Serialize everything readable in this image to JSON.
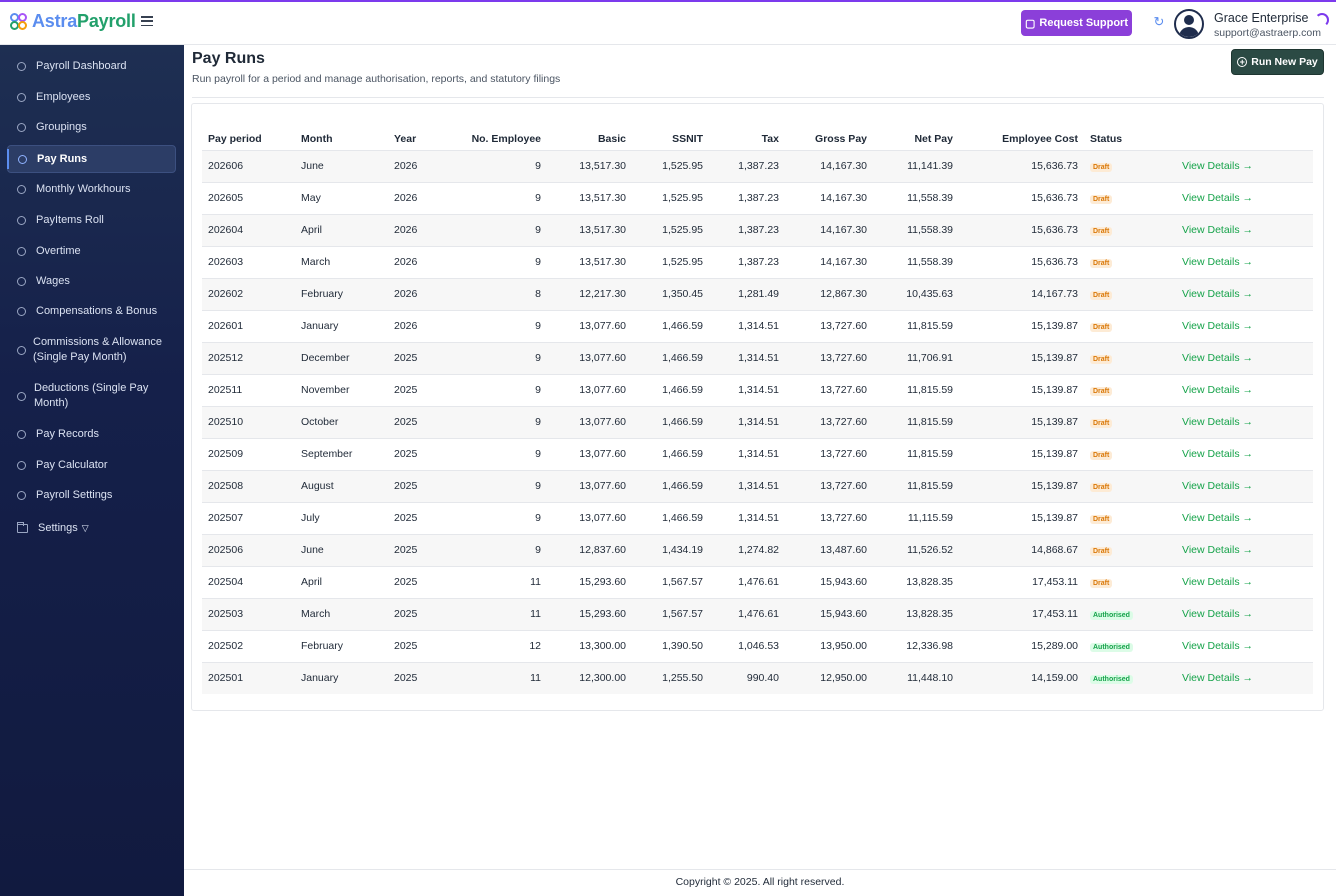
{
  "header": {
    "logo_part1": "Astra",
    "logo_part2": "Payroll",
    "support_label": "Request Support",
    "user_name": "Grace Enterprise",
    "user_email": "support@astraerp.com"
  },
  "sidebar": {
    "items": [
      {
        "label": "Payroll Dashboard"
      },
      {
        "label": "Employees"
      },
      {
        "label": "Groupings"
      },
      {
        "label": "Pay Runs",
        "active": true
      },
      {
        "label": "Monthly Workhours"
      },
      {
        "label": "PayItems Roll"
      },
      {
        "label": "Overtime"
      },
      {
        "label": "Wages"
      },
      {
        "label": "Compensations & Bonus"
      },
      {
        "label": "Commissions & Allowance (Single Pay Month)"
      },
      {
        "label": "Deductions (Single Pay Month)"
      },
      {
        "label": "Pay Records"
      },
      {
        "label": "Pay Calculator"
      },
      {
        "label": "Payroll Settings"
      },
      {
        "label": "Settings"
      }
    ]
  },
  "page": {
    "title": "Pay Runs",
    "subtitle": "Run payroll for a period and manage authorisation, reports, and statutory filings",
    "run_button": "Run New Pay"
  },
  "table": {
    "headers": [
      "Pay period",
      "Month",
      "Year",
      "No. Employee",
      "Basic",
      "SSNIT",
      "Tax",
      "Gross Pay",
      "Net Pay",
      "Employee Cost",
      "Status",
      ""
    ],
    "link_label": "View Details →",
    "rows": [
      [
        "202606",
        "June",
        "2026",
        "9",
        "13,517.30",
        "1,525.95",
        "1,387.23",
        "14,167.30",
        "11,141.39",
        "15,636.73",
        "Draft"
      ],
      [
        "202605",
        "May",
        "2026",
        "9",
        "13,517.30",
        "1,525.95",
        "1,387.23",
        "14,167.30",
        "11,558.39",
        "15,636.73",
        "Draft"
      ],
      [
        "202604",
        "April",
        "2026",
        "9",
        "13,517.30",
        "1,525.95",
        "1,387.23",
        "14,167.30",
        "11,558.39",
        "15,636.73",
        "Draft"
      ],
      [
        "202603",
        "March",
        "2026",
        "9",
        "13,517.30",
        "1,525.95",
        "1,387.23",
        "14,167.30",
        "11,558.39",
        "15,636.73",
        "Draft"
      ],
      [
        "202602",
        "February",
        "2026",
        "8",
        "12,217.30",
        "1,350.45",
        "1,281.49",
        "12,867.30",
        "10,435.63",
        "14,167.73",
        "Draft"
      ],
      [
        "202601",
        "January",
        "2026",
        "9",
        "13,077.60",
        "1,466.59",
        "1,314.51",
        "13,727.60",
        "11,815.59",
        "15,139.87",
        "Draft"
      ],
      [
        "202512",
        "December",
        "2025",
        "9",
        "13,077.60",
        "1,466.59",
        "1,314.51",
        "13,727.60",
        "11,706.91",
        "15,139.87",
        "Draft"
      ],
      [
        "202511",
        "November",
        "2025",
        "9",
        "13,077.60",
        "1,466.59",
        "1,314.51",
        "13,727.60",
        "11,815.59",
        "15,139.87",
        "Draft"
      ],
      [
        "202510",
        "October",
        "2025",
        "9",
        "13,077.60",
        "1,466.59",
        "1,314.51",
        "13,727.60",
        "11,815.59",
        "15,139.87",
        "Draft"
      ],
      [
        "202509",
        "September",
        "2025",
        "9",
        "13,077.60",
        "1,466.59",
        "1,314.51",
        "13,727.60",
        "11,815.59",
        "15,139.87",
        "Draft"
      ],
      [
        "202508",
        "August",
        "2025",
        "9",
        "13,077.60",
        "1,466.59",
        "1,314.51",
        "13,727.60",
        "11,815.59",
        "15,139.87",
        "Draft"
      ],
      [
        "202507",
        "July",
        "2025",
        "9",
        "13,077.60",
        "1,466.59",
        "1,314.51",
        "13,727.60",
        "11,115.59",
        "15,139.87",
        "Draft"
      ],
      [
        "202506",
        "June",
        "2025",
        "9",
        "12,837.60",
        "1,434.19",
        "1,274.82",
        "13,487.60",
        "11,526.52",
        "14,868.67",
        "Draft"
      ],
      [
        "202504",
        "April",
        "2025",
        "11",
        "15,293.60",
        "1,567.57",
        "1,476.61",
        "15,943.60",
        "13,828.35",
        "17,453.11",
        "Draft"
      ],
      [
        "202503",
        "March",
        "2025",
        "11",
        "15,293.60",
        "1,567.57",
        "1,476.61",
        "15,943.60",
        "13,828.35",
        "17,453.11",
        "Authorised"
      ],
      [
        "202502",
        "February",
        "2025",
        "12",
        "13,300.00",
        "1,390.50",
        "1,046.53",
        "13,950.00",
        "12,336.98",
        "15,289.00",
        "Authorised"
      ],
      [
        "202501",
        "January",
        "2025",
        "11",
        "12,300.00",
        "1,255.50",
        "990.40",
        "12,950.00",
        "11,448.10",
        "14,159.00",
        "Authorised"
      ]
    ]
  },
  "footer": {
    "text": "Copyright © 2025. All right reserved."
  }
}
